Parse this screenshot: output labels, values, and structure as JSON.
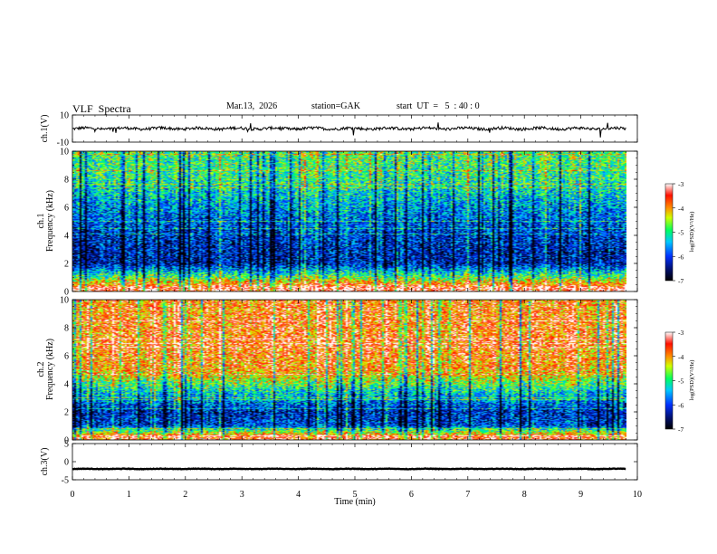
{
  "header": {
    "title": "VLF  Spectra",
    "date": "Mar.13,  2026",
    "station": "station=GAK",
    "start": "start  UT  =   5  : 40 : 0"
  },
  "chart_data": {
    "type": "heatmap",
    "xlabel": "Time  (min)",
    "x_range": [
      0,
      10
    ],
    "x_ticks": [
      "0",
      "1",
      "2",
      "3",
      "4",
      "5",
      "6",
      "7",
      "8",
      "9",
      "10"
    ],
    "data_end_min": 9.8,
    "panels": [
      {
        "name": "ch1-waveform",
        "type": "line",
        "ylabel": "ch.1(V)",
        "y_range": [
          -10,
          10
        ],
        "y_ticks": [
          "10",
          "-10"
        ],
        "baseline": 0,
        "typical_amplitude": 1.5
      },
      {
        "name": "ch1-spectrogram",
        "type": "heatmap",
        "ylabel_channel": "ch.1",
        "ylabel": "Frequency  (kHz)",
        "y_range": [
          0,
          10
        ],
        "y_ticks": [
          "0",
          "2",
          "4",
          "6",
          "8",
          "10"
        ],
        "colorbar": {
          "label": "log(PSD)(V²/Hz)",
          "range": [
            -7,
            -3
          ],
          "ticks": [
            "-3",
            "-4",
            "-5",
            "-6",
            "-7"
          ]
        },
        "description_level_profile": [
          {
            "f_khz": 0.2,
            "log_psd": -3.2
          },
          {
            "f_khz": 1.0,
            "log_psd": -4.8
          },
          {
            "f_khz": 2.0,
            "log_psd": -6.3
          },
          {
            "f_khz": 4.0,
            "log_psd": -6.1
          },
          {
            "f_khz": 6.0,
            "log_psd": -5.6
          },
          {
            "f_khz": 8.0,
            "log_psd": -5.0
          },
          {
            "f_khz": 10.0,
            "log_psd": -4.8
          }
        ]
      },
      {
        "name": "ch2-spectrogram",
        "type": "heatmap",
        "ylabel_channel": "ch.2",
        "ylabel": "Frequency  (kHz)",
        "y_range": [
          0,
          10
        ],
        "y_ticks": [
          "0",
          "2",
          "4",
          "6",
          "8",
          "10"
        ],
        "colorbar": {
          "label": "log(PSD)(V²/Hz)",
          "range": [
            -7,
            -3
          ],
          "ticks": [
            "-3",
            "-4",
            "-5",
            "-6",
            "-7"
          ]
        },
        "description_level_profile": [
          {
            "f_khz": 0.2,
            "log_psd": -3.5
          },
          {
            "f_khz": 1.0,
            "log_psd": -6.0
          },
          {
            "f_khz": 2.0,
            "log_psd": -6.2
          },
          {
            "f_khz": 3.5,
            "log_psd": -5.2
          },
          {
            "f_khz": 5.0,
            "log_psd": -3.9
          },
          {
            "f_khz": 7.0,
            "log_psd": -3.7
          },
          {
            "f_khz": 10.0,
            "log_psd": -3.8
          }
        ]
      },
      {
        "name": "ch3-waveform",
        "type": "line",
        "ylabel": "ch.3(V)",
        "y_range": [
          -5,
          5
        ],
        "y_ticks": [
          "5",
          "0",
          "-5"
        ],
        "baseline": -2,
        "typical_amplitude": 0.15
      }
    ]
  }
}
